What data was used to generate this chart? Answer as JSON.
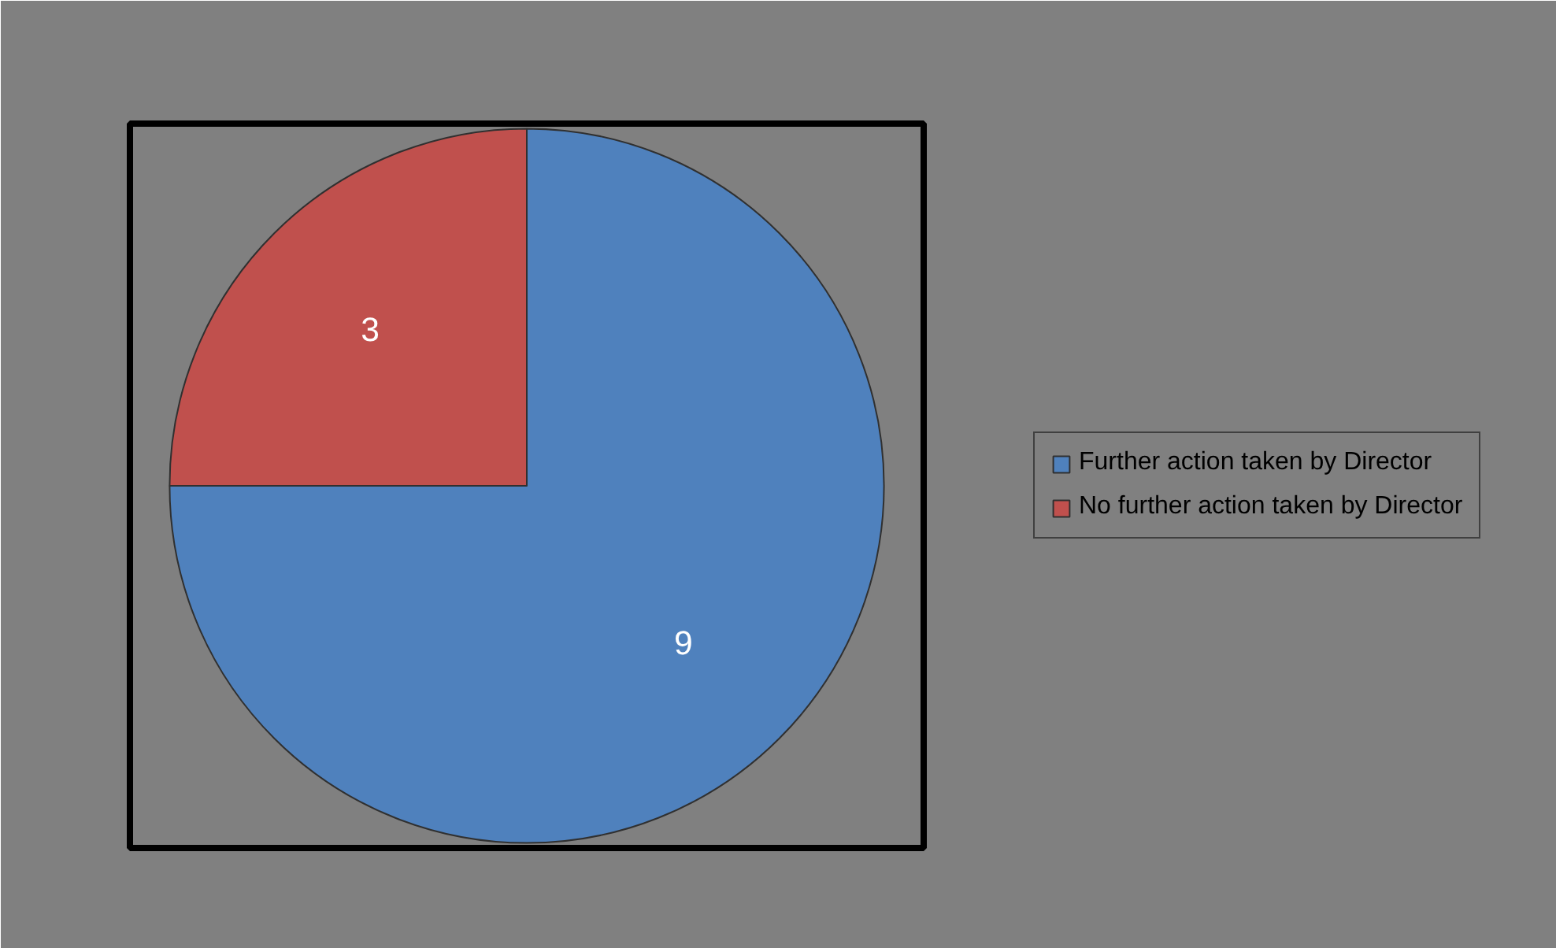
{
  "chart_data": {
    "type": "pie",
    "categories": [
      "Further action taken by Director",
      "No further action taken by Director"
    ],
    "values": [
      9,
      3
    ],
    "colors": [
      "#4f81bd",
      "#c0504d"
    ],
    "data_labels": true,
    "legend": "right"
  }
}
